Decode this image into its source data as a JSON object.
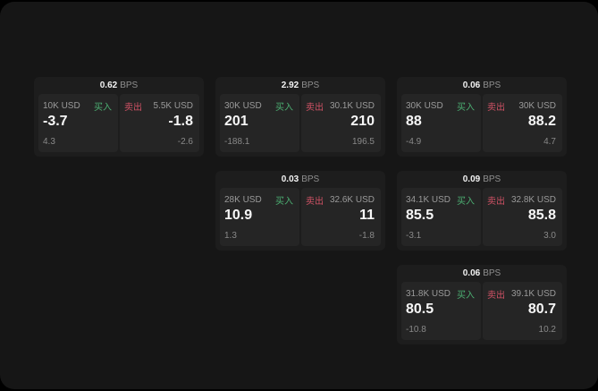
{
  "labels": {
    "bps": "BPS",
    "buy": "买入",
    "sell": "卖出"
  },
  "colors": {
    "buy": "#4caf72",
    "sell": "#d05265"
  },
  "cards": [
    {
      "row": 1,
      "col": 1,
      "bps": "0.62",
      "buy": {
        "amount": "10K USD",
        "price": "-3.7",
        "delta": "4.3"
      },
      "sell": {
        "amount": "5.5K USD",
        "price": "-1.8",
        "delta": "-2.6"
      }
    },
    {
      "row": 1,
      "col": 2,
      "bps": "2.92",
      "buy": {
        "amount": "30K USD",
        "price": "201",
        "delta": "-188.1"
      },
      "sell": {
        "amount": "30.1K USD",
        "price": "210",
        "delta": "196.5"
      }
    },
    {
      "row": 1,
      "col": 3,
      "bps": "0.06",
      "buy": {
        "amount": "30K USD",
        "price": "88",
        "delta": "-4.9"
      },
      "sell": {
        "amount": "30K USD",
        "price": "88.2",
        "delta": "4.7"
      }
    },
    {
      "row": 2,
      "col": 2,
      "bps": "0.03",
      "buy": {
        "amount": "28K USD",
        "price": "10.9",
        "delta": "1.3"
      },
      "sell": {
        "amount": "32.6K USD",
        "price": "11",
        "delta": "-1.8"
      }
    },
    {
      "row": 2,
      "col": 3,
      "bps": "0.09",
      "buy": {
        "amount": "34.1K USD",
        "price": "85.5",
        "delta": "-3.1"
      },
      "sell": {
        "amount": "32.8K USD",
        "price": "85.8",
        "delta": "3.0"
      }
    },
    {
      "row": 3,
      "col": 3,
      "bps": "0.06",
      "buy": {
        "amount": "31.8K USD",
        "price": "80.5",
        "delta": "-10.8"
      },
      "sell": {
        "amount": "39.1K USD",
        "price": "80.7",
        "delta": "10.2"
      }
    }
  ]
}
